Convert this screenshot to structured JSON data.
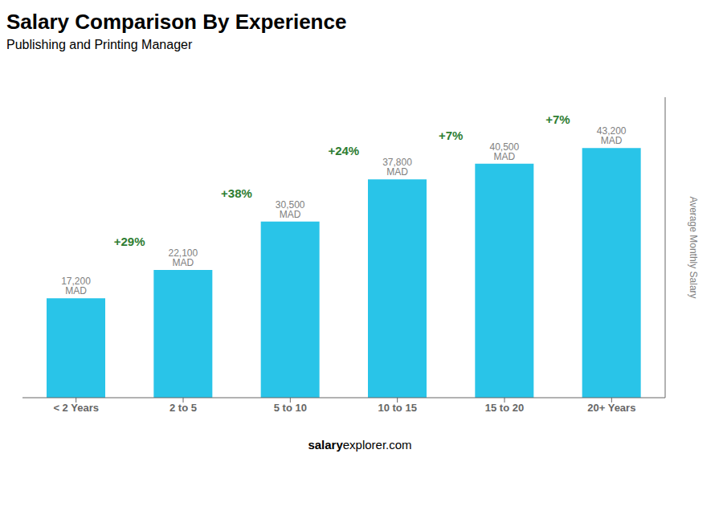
{
  "chart_data": {
    "type": "bar",
    "title": "Salary Comparison By Experience",
    "subtitle": "Publishing and Printing Manager",
    "categories": [
      "< 2 Years",
      "2 to 5",
      "5 to 10",
      "10 to 15",
      "15 to 20",
      "20+ Years"
    ],
    "values": [
      17200,
      22100,
      30500,
      37800,
      40500,
      43200
    ],
    "value_labels": [
      "17,200 MAD",
      "22,100 MAD",
      "30,500 MAD",
      "37,800 MAD",
      "40,500 MAD",
      "43,200 MAD"
    ],
    "data_labels": true,
    "color": "#29C4E8",
    "ylabel": "Average Monthly Salary",
    "ylim": [
      0,
      52000
    ],
    "tick_labels": "x",
    "grid": false,
    "annotations": [
      "+29%",
      "+38%",
      "+24%",
      "+7%",
      "+7%"
    ],
    "footer": [
      "salary",
      "explorer.com"
    ]
  }
}
